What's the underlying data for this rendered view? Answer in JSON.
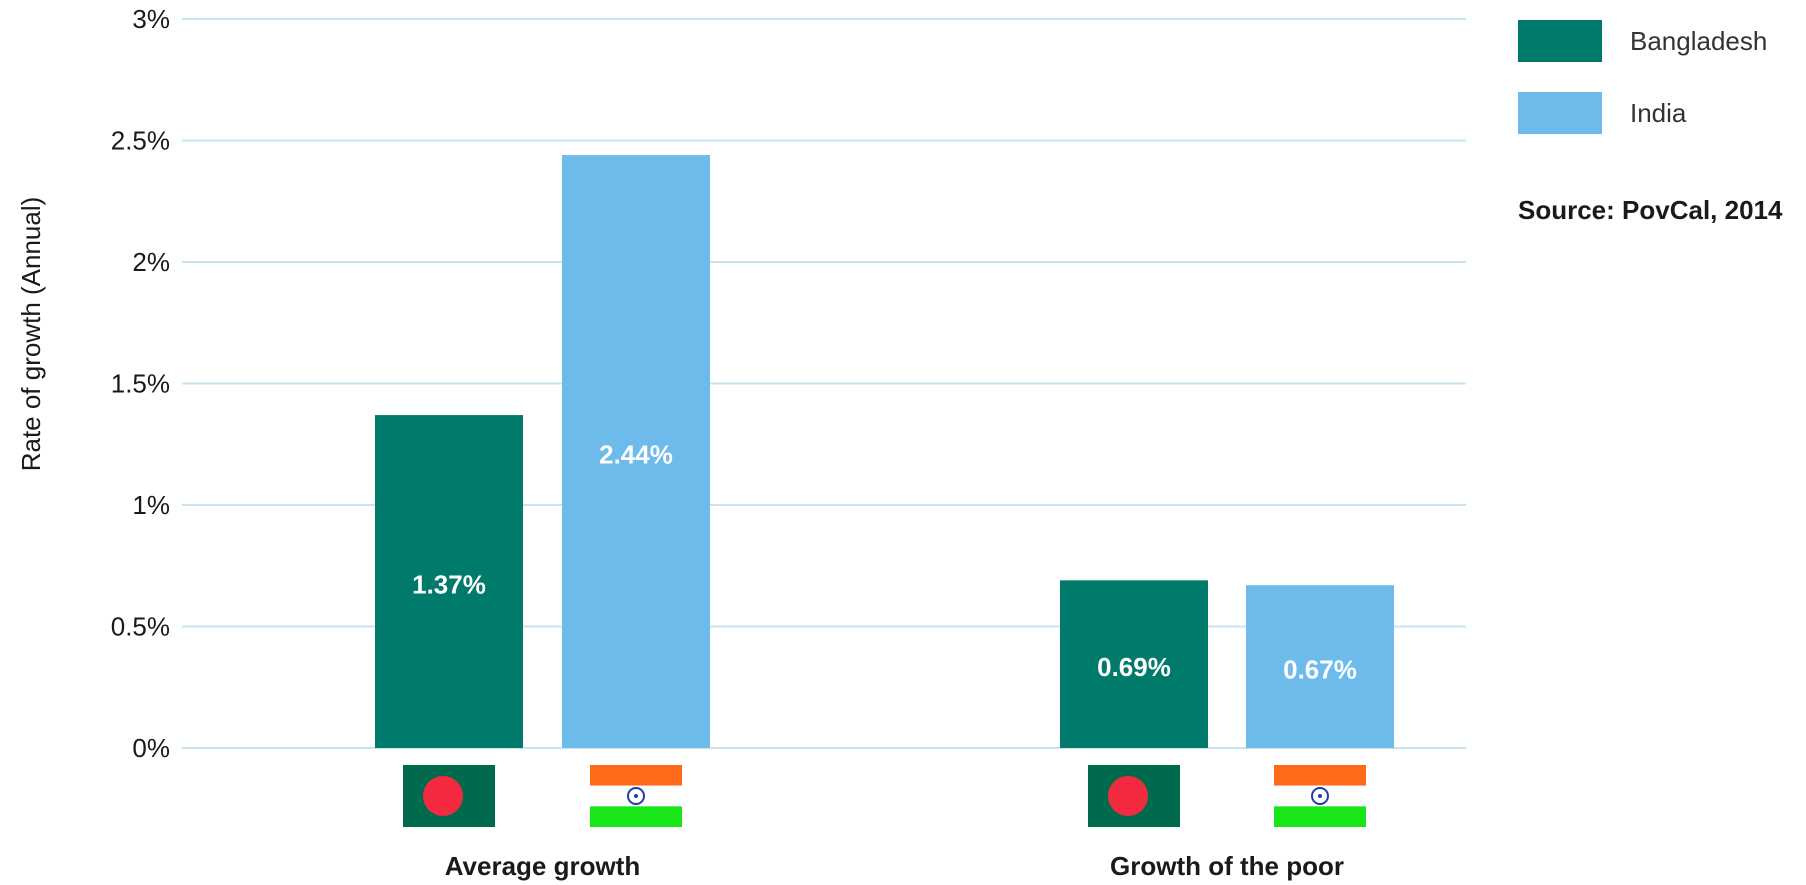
{
  "chart_data": {
    "type": "bar",
    "categories": [
      "Average growth",
      "Growth of the poor"
    ],
    "series": [
      {
        "name": "Bangladesh",
        "values": [
          1.37,
          0.69
        ],
        "labels": [
          "1.37%",
          "0.69%"
        ],
        "color": "#007a6a"
      },
      {
        "name": "India",
        "values": [
          2.44,
          0.67
        ],
        "labels": [
          "2.44%",
          "0.67%"
        ],
        "color": "#6cbbea"
      }
    ],
    "ylabel": "Rate of growth (Annual)",
    "ylim": [
      0,
      3
    ],
    "yticks": [
      0,
      0.5,
      1,
      1.5,
      2,
      2.5,
      3
    ],
    "ytick_labels": [
      "0%",
      "0.5%",
      "1%",
      "1.5%",
      "2%",
      "2.5%",
      "3%"
    ],
    "grid": true,
    "legend_position": "top-right",
    "source": "Source: PovCal, 2014",
    "flags": [
      "bangladesh-flag",
      "india-flag"
    ],
    "gridline_color": "#c9e3ef",
    "flag_colors": {
      "bangladesh_green": "#006a4e",
      "bangladesh_red": "#f42a41",
      "india_saffron": "#ff6a1a",
      "india_white": "#ffffff",
      "india_green": "#19e619",
      "india_chakra": "#1f3fa6"
    }
  }
}
